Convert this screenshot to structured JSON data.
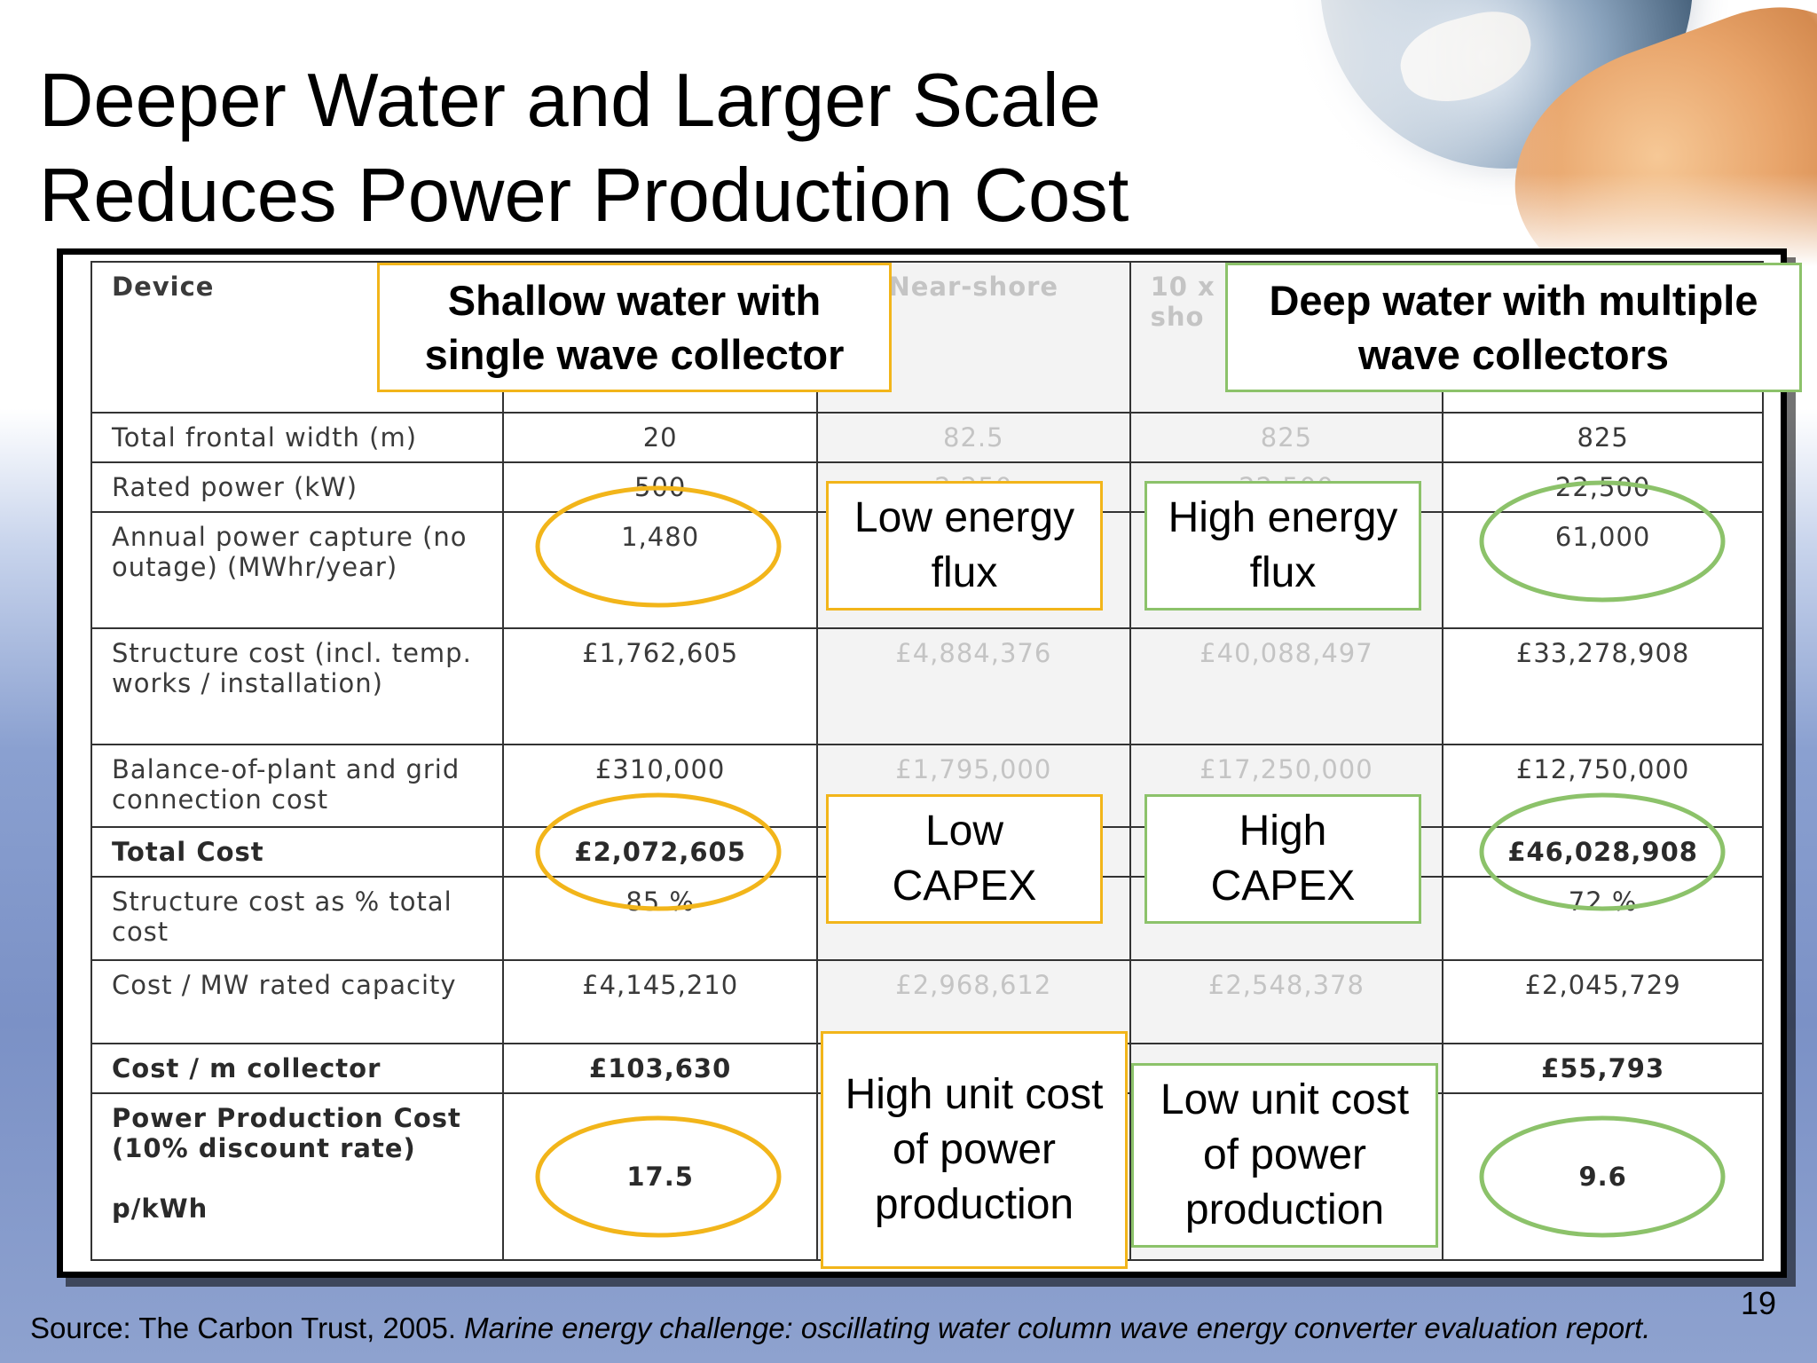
{
  "slide": {
    "title_line1": "Deeper Water and Larger Scale",
    "title_line2": "Reduces Power Production Cost",
    "page_number": "19",
    "source_plain": "Source: The Carbon Trust, 2005.",
    "source_italic": "Marine energy challenge: oscillating water column wave energy converter evaluation report."
  },
  "table": {
    "header": {
      "device": "Device",
      "col3_partial": "Near-shore",
      "col4_partial_a": "10 x",
      "col4_partial_b": "sho"
    },
    "rows": [
      {
        "label": "Total frontal width (m)",
        "values": [
          "20",
          "82.5",
          "825",
          "825"
        ]
      },
      {
        "label": "Rated power (kW)",
        "values": [
          "500",
          "2,250",
          "22,500",
          "22,500"
        ]
      },
      {
        "label": "Annual power capture (no outage) (MWhr/year)",
        "values": [
          "1,480",
          "",
          "",
          "61,000"
        ]
      },
      {
        "label": "Structure cost (incl. temp. works / installation)",
        "values": [
          "£1,762,605",
          "£4,884,376",
          "£40,088,497",
          "£33,278,908"
        ]
      },
      {
        "label": "Balance-of-plant and grid connection cost",
        "values": [
          "£310,000",
          "£1,795,000",
          "£17,250,000",
          "£12,750,000"
        ]
      },
      {
        "label": "Total Cost",
        "values": [
          "£2,072,605",
          "",
          "",
          "£46,028,908"
        ]
      },
      {
        "label": "Structure cost as % total cost",
        "values": [
          "85 %",
          "",
          "",
          "72 %"
        ]
      },
      {
        "label": "Cost / MW rated capacity",
        "values": [
          "£4,145,210",
          "£2,968,612",
          "£2,548,378",
          "£2,045,729"
        ]
      },
      {
        "label": "Cost / m collector",
        "values": [
          "£103,630",
          "",
          "",
          "£55,793"
        ]
      },
      {
        "label": "Power Production Cost (10% discount rate)",
        "label_unit": "p/kWh",
        "values": [
          "17.5",
          "",
          "",
          "9.6"
        ]
      }
    ]
  },
  "callouts": {
    "shallow": "Shallow water with single wave collector",
    "deep": "Deep water with multiple wave collectors",
    "low_flux": "Low energy flux",
    "high_flux": "High energy flux",
    "low_capex": "Low CAPEX",
    "high_capex": "High CAPEX",
    "high_unit": "High unit cost of power production",
    "low_unit": "Low unit cost of power production"
  },
  "colors": {
    "yellow_accent": "#f2b51a",
    "green_accent": "#8cc26a"
  }
}
